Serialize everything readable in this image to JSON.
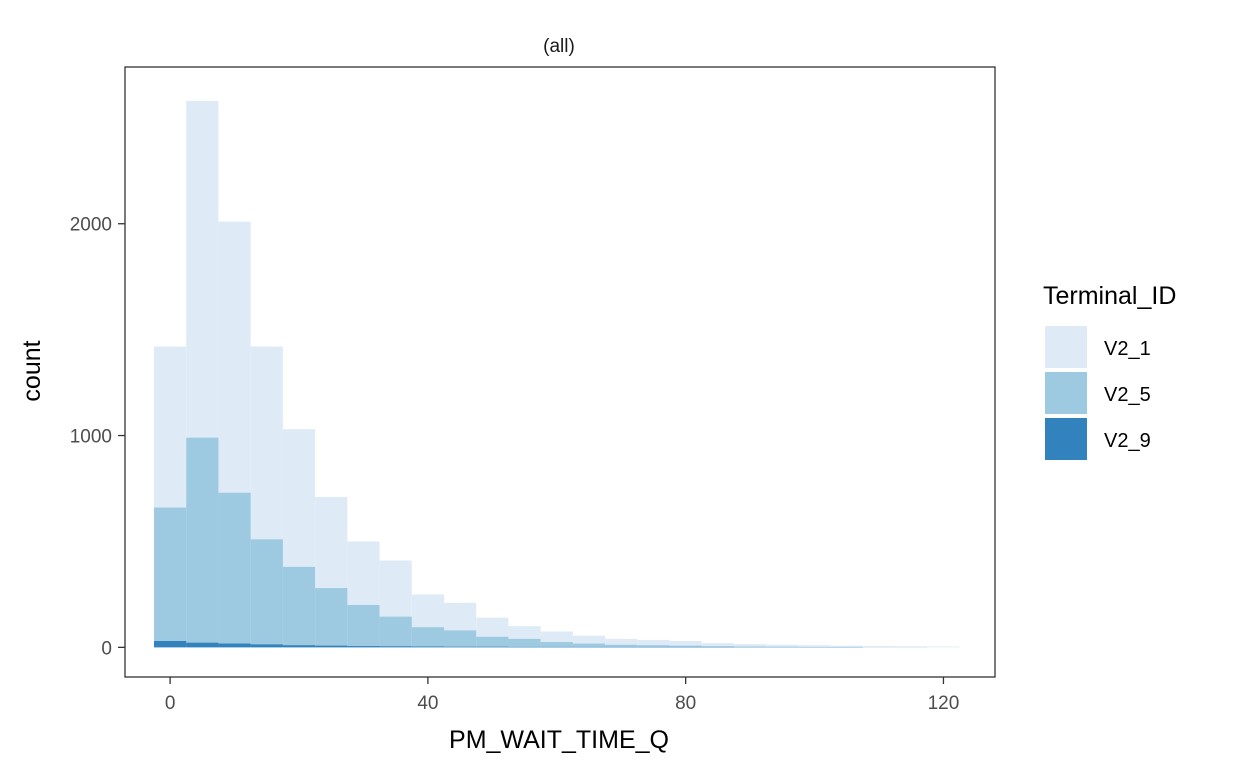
{
  "chart_data": {
    "type": "bar",
    "subtype": "overlapping-histogram",
    "facet_label": "(all)",
    "xlabel": "PM_WAIT_TIME_Q",
    "ylabel": "count",
    "xlim": [
      -7,
      128
    ],
    "ylim": [
      -140,
      2740
    ],
    "x_ticks": [
      0,
      40,
      80,
      120
    ],
    "y_ticks": [
      0,
      1000,
      2000
    ],
    "grid": false,
    "bin_width": 5,
    "bin_start": -2.5,
    "legend": {
      "title": "Terminal_ID",
      "position": "right"
    },
    "series": [
      {
        "name": "V2_1",
        "color": "#deebf7",
        "values": [
          1420,
          2580,
          2010,
          1420,
          1030,
          710,
          500,
          410,
          250,
          210,
          140,
          100,
          75,
          55,
          40,
          35,
          30,
          20,
          15,
          12,
          10,
          8,
          6,
          5,
          4
        ]
      },
      {
        "name": "V2_5",
        "color": "#9ecae1",
        "values": [
          660,
          990,
          730,
          510,
          380,
          280,
          200,
          145,
          95,
          80,
          50,
          40,
          25,
          18,
          12,
          10,
          8,
          5,
          4,
          3,
          2,
          2,
          1,
          1,
          0
        ]
      },
      {
        "name": "V2_9",
        "color": "#3182bd",
        "values": [
          30,
          22,
          18,
          14,
          10,
          8,
          6,
          5,
          4,
          3,
          3,
          2,
          2,
          2,
          2,
          2,
          2,
          2,
          1,
          1,
          1,
          1,
          0,
          0,
          0
        ]
      }
    ]
  }
}
